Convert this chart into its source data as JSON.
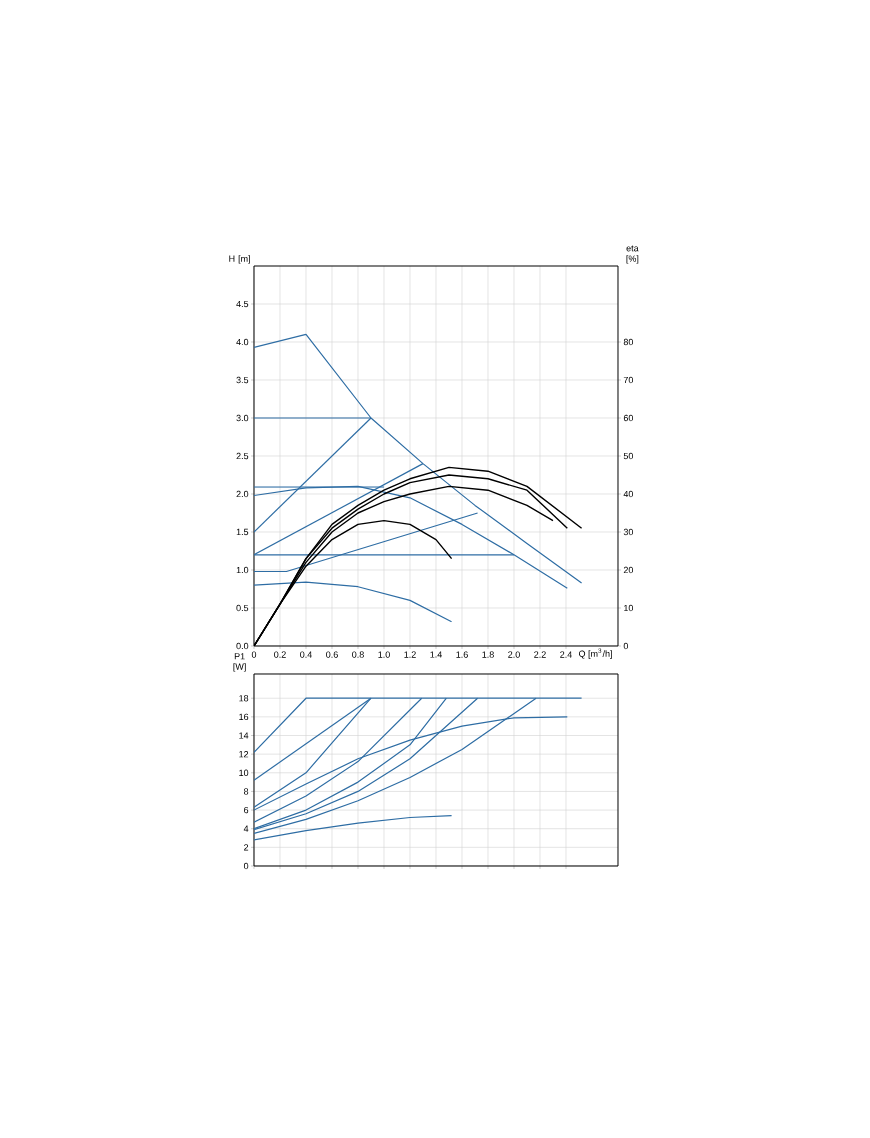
{
  "chart_data": [
    {
      "type": "line",
      "xlabel": "Q [m$^{3}$/h]",
      "ylabel": "H [m]",
      "y2label": "eta [%]",
      "grid": true,
      "xlim": [
        0,
        2.8
      ],
      "xticks": [
        0,
        0.2,
        0.4,
        0.6,
        0.8,
        {
          "value": 1,
          "label": "1.0"
        },
        1.2,
        1.4,
        1.6,
        1.8,
        {
          "value": 2,
          "label": "2.0"
        },
        2.2,
        2.4
      ],
      "ylim": [
        0,
        5
      ],
      "yticks": [
        {
          "value": 0,
          "label": "0.0"
        },
        {
          "value": 0.5,
          "label": "0.5"
        },
        {
          "value": 1,
          "label": "1.0"
        },
        {
          "value": 1.5,
          "label": "1.5"
        },
        {
          "value": 2,
          "label": "2.0"
        },
        {
          "value": 2.5,
          "label": "2.5"
        },
        {
          "value": 3,
          "label": "3.0"
        },
        {
          "value": 3.5,
          "label": "3.5"
        },
        {
          "value": 4,
          "label": "4.0"
        },
        {
          "value": 4.5,
          "label": "4.5"
        }
      ],
      "y2lim": [
        0,
        100
      ],
      "y2ticks": [
        0,
        10,
        20,
        30,
        40,
        50,
        60,
        70,
        80
      ],
      "series": [
        {
          "color": "#2e6da4",
          "x": [
            0,
            0.4,
            0.9,
            1.3,
            1.7,
            2.1,
            2.52
          ],
          "values": [
            3.93,
            4.1,
            3.0,
            2.4,
            1.85,
            1.35,
            0.83
          ]
        },
        {
          "color": "#2e6da4",
          "x": [
            0,
            0.9
          ],
          "values": [
            3.0,
            3.0
          ]
        },
        {
          "color": "#2e6da4",
          "x": [
            0,
            0.9
          ],
          "values": [
            1.5,
            3.0
          ]
        },
        {
          "color": "#2e6da4",
          "x": [
            0,
            1.3
          ],
          "values": [
            1.2,
            2.4
          ]
        },
        {
          "color": "#2e6da4",
          "x": [
            0,
            1.0
          ],
          "values": [
            2.09,
            2.09
          ]
        },
        {
          "color": "#2e6da4",
          "x": [
            0,
            0.4,
            0.8,
            1.2,
            1.6,
            2.0,
            2.41
          ],
          "values": [
            1.98,
            2.08,
            2.1,
            1.95,
            1.6,
            1.2,
            0.76
          ]
        },
        {
          "color": "#2e6da4",
          "x": [
            0,
            2.0
          ],
          "values": [
            1.2,
            1.2
          ]
        },
        {
          "color": "#2e6da4",
          "x": [
            0,
            0.25,
            1.72
          ],
          "values": [
            0.98,
            0.98,
            1.75
          ]
        },
        {
          "color": "#2e6da4",
          "x": [
            0,
            0.4,
            0.8,
            1.2,
            1.52
          ],
          "values": [
            0.8,
            0.84,
            0.78,
            0.6,
            0.32
          ]
        },
        {
          "color": "#000000",
          "axis": "y2",
          "x": [
            0,
            0.2,
            0.4,
            0.6,
            0.8,
            1.0,
            1.2,
            1.4,
            1.52
          ],
          "values": [
            0,
            11,
            21,
            28,
            32,
            33,
            32,
            28,
            23
          ]
        },
        {
          "color": "#000000",
          "axis": "y2",
          "x": [
            0,
            0.2,
            0.4,
            0.6,
            0.8,
            1.0,
            1.2,
            1.5,
            1.8,
            2.1,
            2.3
          ],
          "values": [
            0,
            11,
            22,
            30,
            35,
            38,
            40,
            42,
            41,
            37,
            33
          ]
        },
        {
          "color": "#000000",
          "axis": "y2",
          "x": [
            0,
            0.2,
            0.4,
            0.6,
            0.8,
            1.0,
            1.2,
            1.5,
            1.8,
            2.1,
            2.41
          ],
          "values": [
            0,
            11,
            23,
            31,
            36,
            40,
            43,
            45,
            44,
            41,
            31
          ]
        },
        {
          "color": "#000000",
          "axis": "y2",
          "x": [
            0,
            0.2,
            0.4,
            0.6,
            0.8,
            1.0,
            1.2,
            1.5,
            1.8,
            2.1,
            2.52
          ],
          "values": [
            0,
            11,
            23,
            32,
            37,
            41,
            44,
            47,
            46,
            42,
            31
          ]
        }
      ]
    },
    {
      "type": "line",
      "ylabel": "P1 [W]",
      "grid": true,
      "tick_labels": "y",
      "xlim": [
        0,
        2.8
      ],
      "xticks": [
        0,
        0.2,
        0.4,
        0.6,
        0.8,
        1.0,
        1.2,
        1.4,
        1.6,
        1.8,
        2.0,
        2.2,
        2.4
      ],
      "ylim": [
        0,
        20.6
      ],
      "yticks": [
        0,
        2,
        4,
        6,
        8,
        10,
        12,
        14,
        16,
        18
      ],
      "series": [
        {
          "color": "#2e6da4",
          "x": [
            0,
            0.4,
            2.52
          ],
          "values": [
            12.2,
            18,
            18
          ]
        },
        {
          "color": "#2e6da4",
          "x": [
            0,
            0.9
          ],
          "values": [
            9.2,
            18
          ]
        },
        {
          "color": "#2e6da4",
          "x": [
            0,
            0.4,
            0.9
          ],
          "values": [
            6.3,
            10,
            18
          ]
        },
        {
          "color": "#2e6da4",
          "x": [
            0,
            0.4,
            0.8,
            1.29
          ],
          "values": [
            4.7,
            7.5,
            11.2,
            18
          ]
        },
        {
          "color": "#2e6da4",
          "x": [
            0,
            0.4,
            0.8,
            1.2,
            1.48
          ],
          "values": [
            4.0,
            6,
            9,
            13,
            18
          ]
        },
        {
          "color": "#2e6da4",
          "x": [
            0,
            0.4,
            0.8,
            1.2,
            1.72
          ],
          "values": [
            3.9,
            5.6,
            8,
            11.5,
            18
          ]
        },
        {
          "color": "#2e6da4",
          "x": [
            0,
            0.4,
            0.8,
            1.2,
            1.6,
            2.17
          ],
          "values": [
            3.5,
            5,
            7,
            9.5,
            12.5,
            18
          ]
        },
        {
          "color": "#2e6da4",
          "x": [
            0,
            0.4,
            0.8,
            1.2,
            1.6,
            2.0,
            2.41
          ],
          "values": [
            6.0,
            8.8,
            11.5,
            13.5,
            15,
            15.9,
            16.0
          ]
        },
        {
          "color": "#2e6da4",
          "x": [
            0,
            0.4,
            0.8,
            1.2,
            1.52
          ],
          "values": [
            2.8,
            3.8,
            4.6,
            5.2,
            5.4
          ]
        }
      ]
    }
  ]
}
